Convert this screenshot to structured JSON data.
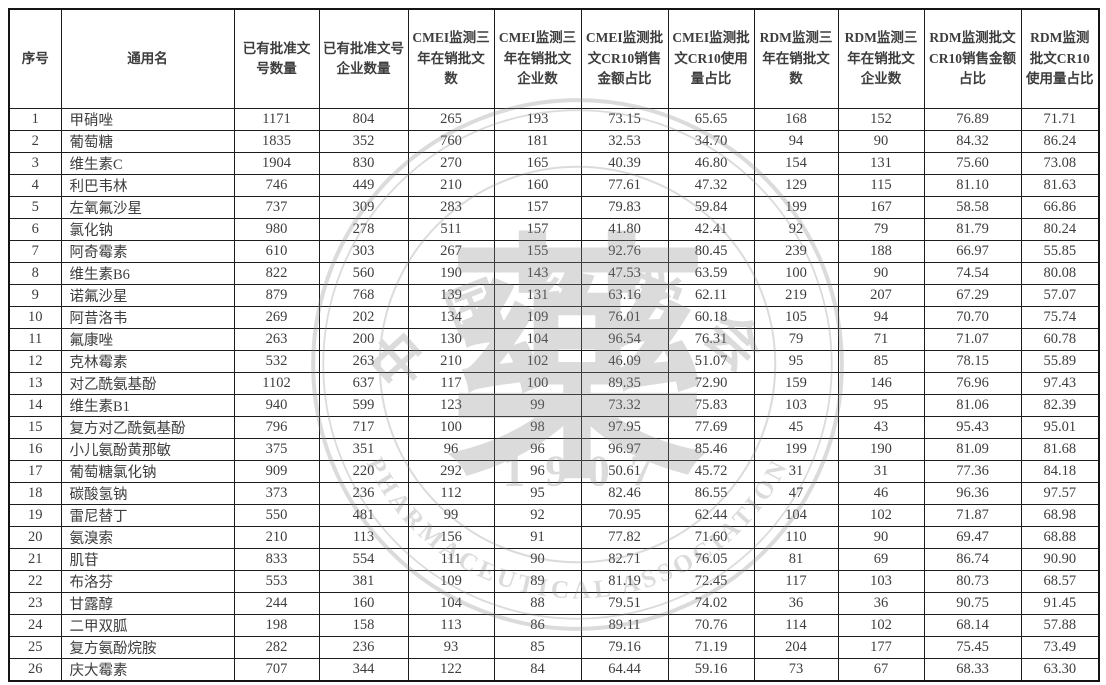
{
  "table": {
    "columns": [
      "序号",
      "通用名",
      "已有批准文号数量",
      "已有批准文号企业数量",
      "CMEI监测三年在销批文数",
      "CMEI监测三年在销批文企业数",
      "CMEI监测批文CR10销售金额占比",
      "CMEI监测批文CR10使用量占比",
      "RDM监测三年在销批文数",
      "RDM监测三年在销批文企业数",
      "RDM监测批文CR10销售金额占比",
      "RDM监测批文CR10使用量占比"
    ],
    "rows": [
      [
        "1",
        "甲硝唑",
        "1171",
        "804",
        "265",
        "193",
        "73.15",
        "65.65",
        "168",
        "152",
        "76.89",
        "71.71"
      ],
      [
        "2",
        "葡萄糖",
        "1835",
        "352",
        "760",
        "181",
        "32.53",
        "34.70",
        "94",
        "90",
        "84.32",
        "86.24"
      ],
      [
        "3",
        "维生素C",
        "1904",
        "830",
        "270",
        "165",
        "40.39",
        "46.80",
        "154",
        "131",
        "75.60",
        "73.08"
      ],
      [
        "4",
        "利巴韦林",
        "746",
        "449",
        "210",
        "160",
        "77.61",
        "47.32",
        "129",
        "115",
        "81.10",
        "81.63"
      ],
      [
        "5",
        "左氧氟沙星",
        "737",
        "309",
        "283",
        "157",
        "79.83",
        "59.84",
        "199",
        "167",
        "58.58",
        "66.86"
      ],
      [
        "6",
        "氯化钠",
        "980",
        "278",
        "511",
        "157",
        "41.80",
        "42.41",
        "92",
        "79",
        "81.79",
        "80.24"
      ],
      [
        "7",
        "阿奇霉素",
        "610",
        "303",
        "267",
        "155",
        "92.76",
        "80.45",
        "239",
        "188",
        "66.97",
        "55.85"
      ],
      [
        "8",
        "维生素B6",
        "822",
        "560",
        "190",
        "143",
        "47.53",
        "63.59",
        "100",
        "90",
        "74.54",
        "80.08"
      ],
      [
        "9",
        "诺氟沙星",
        "879",
        "768",
        "139",
        "131",
        "63.16",
        "62.11",
        "219",
        "207",
        "67.29",
        "57.07"
      ],
      [
        "10",
        "阿昔洛韦",
        "269",
        "202",
        "134",
        "109",
        "76.01",
        "60.18",
        "105",
        "94",
        "70.70",
        "75.74"
      ],
      [
        "11",
        "氟康唑",
        "263",
        "200",
        "130",
        "104",
        "96.54",
        "76.31",
        "79",
        "71",
        "71.07",
        "60.78"
      ],
      [
        "12",
        "克林霉素",
        "532",
        "263",
        "210",
        "102",
        "46.09",
        "51.07",
        "95",
        "85",
        "78.15",
        "55.89"
      ],
      [
        "13",
        "对乙酰氨基酚",
        "1102",
        "637",
        "117",
        "100",
        "89.35",
        "72.90",
        "159",
        "146",
        "76.96",
        "97.43"
      ],
      [
        "14",
        "维生素B1",
        "940",
        "599",
        "123",
        "99",
        "73.32",
        "75.83",
        "103",
        "95",
        "81.06",
        "82.39"
      ],
      [
        "15",
        "复方对乙酰氨基酚",
        "796",
        "717",
        "100",
        "98",
        "97.95",
        "77.69",
        "45",
        "43",
        "95.43",
        "95.01"
      ],
      [
        "16",
        "小儿氨酚黄那敏",
        "375",
        "351",
        "96",
        "96",
        "96.97",
        "85.46",
        "199",
        "190",
        "81.09",
        "81.68"
      ],
      [
        "17",
        "葡萄糖氯化钠",
        "909",
        "220",
        "292",
        "96",
        "50.61",
        "45.72",
        "31",
        "31",
        "77.36",
        "84.18"
      ],
      [
        "18",
        "碳酸氢钠",
        "373",
        "236",
        "112",
        "95",
        "82.46",
        "86.55",
        "47",
        "46",
        "96.36",
        "97.57"
      ],
      [
        "19",
        "雷尼替丁",
        "550",
        "481",
        "99",
        "92",
        "70.95",
        "62.44",
        "104",
        "102",
        "71.87",
        "68.98"
      ],
      [
        "20",
        "氨溴索",
        "210",
        "113",
        "156",
        "91",
        "77.82",
        "71.60",
        "110",
        "90",
        "69.47",
        "68.88"
      ],
      [
        "21",
        "肌苷",
        "833",
        "554",
        "111",
        "90",
        "82.71",
        "76.05",
        "81",
        "69",
        "86.74",
        "90.90"
      ],
      [
        "22",
        "布洛芬",
        "553",
        "381",
        "109",
        "89",
        "81.19",
        "72.45",
        "117",
        "103",
        "80.73",
        "68.57"
      ],
      [
        "23",
        "甘露醇",
        "244",
        "160",
        "104",
        "88",
        "79.51",
        "74.02",
        "36",
        "36",
        "90.75",
        "91.45"
      ],
      [
        "24",
        "二甲双胍",
        "198",
        "158",
        "113",
        "86",
        "89.11",
        "70.76",
        "114",
        "102",
        "68.14",
        "57.88"
      ],
      [
        "25",
        "复方氨酚烷胺",
        "282",
        "236",
        "93",
        "85",
        "79.16",
        "71.19",
        "204",
        "177",
        "75.45",
        "73.49"
      ],
      [
        "26",
        "庆大霉素",
        "707",
        "344",
        "122",
        "84",
        "64.44",
        "59.16",
        "73",
        "67",
        "68.33",
        "63.30"
      ]
    ]
  },
  "watermark": {
    "org_cn": "中国药学会",
    "org_en": "PHARMACEUTICAL ASSOCIATION",
    "year": "1907",
    "center_glyph": "藥",
    "color": "#8a8a8a"
  },
  "colors": {
    "border": "#1c1c1c",
    "text": "#3d3d3d",
    "background": "#ffffff"
  }
}
